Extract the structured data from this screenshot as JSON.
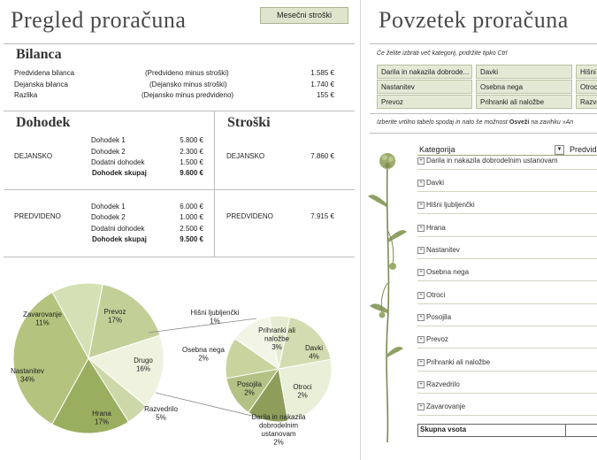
{
  "left": {
    "title": "Pregled proračuna",
    "monthly_button": "Mesečni stroški",
    "balance": {
      "heading": "Bilanca",
      "rows": [
        {
          "label": "Predvidena bilanca",
          "note": "(Predvideno minus stroški)",
          "value": "1.585 €"
        },
        {
          "label": "Dejanska bilanca",
          "note": "(Dejansko minus stroški)",
          "value": "1.740 €"
        },
        {
          "label": "Razlika",
          "note": "(Dejansko minus predvideno)",
          "value": "155 €"
        }
      ]
    },
    "income": {
      "heading": "Dohodek",
      "actual_label": "DEJANSKO",
      "actual": [
        {
          "label": "Dohodek 1",
          "value": "5.800 €"
        },
        {
          "label": "Dohodek 2",
          "value": "2.300 €"
        },
        {
          "label": "Dodatni dohodek",
          "value": "1.500 €"
        }
      ],
      "actual_total_label": "Dohodek skupaj",
      "actual_total": "9.600 €",
      "planned_label": "PREDVIDENO",
      "planned": [
        {
          "label": "Dohodek 1",
          "value": "6.000 €"
        },
        {
          "label": "Dohodek 2",
          "value": "1.000 €"
        },
        {
          "label": "Dodatni dohodek",
          "value": "2.500 €"
        }
      ],
      "planned_total_label": "Dohodek skupaj",
      "planned_total": "9.500 €"
    },
    "expenses": {
      "heading": "Stroški",
      "actual_label": "DEJANSKO",
      "actual_value": "7.860 €",
      "planned_label": "PREDVIDENO",
      "planned_value": "7.915 €"
    }
  },
  "chart_data": {
    "type": "pie",
    "main": [
      {
        "label": "Prevoz",
        "value": 17
      },
      {
        "label": "Drugo",
        "value": 16
      },
      {
        "label": "Razvedrilo",
        "value": 5
      },
      {
        "label": "Hrana",
        "value": 17
      },
      {
        "label": "Nastanitev",
        "value": 34
      },
      {
        "label": "Zavarovanje",
        "value": 11
      }
    ],
    "secondary": [
      {
        "label": "Hišni ljubljenčki",
        "value": 1
      },
      {
        "label": "Prihranki ali naložbe",
        "value": 3
      },
      {
        "label": "Davki",
        "value": 4
      },
      {
        "label": "Otroci",
        "value": 2
      },
      {
        "label": "Darila in nakazila dobrodelnim ustanovam",
        "value": 2
      },
      {
        "label": "Posojila",
        "value": 2
      },
      {
        "label": "Osebna nega",
        "value": 2
      }
    ],
    "main_colors": [
      "#c2cf97",
      "#eef2de",
      "#cdd8a8",
      "#9aae5f",
      "#b4c47e",
      "#d6e0b5"
    ],
    "secondary_colors": [
      "#e6ecd1",
      "#d3dcb0",
      "#eaefd8",
      "#8e9e5a",
      "#b3c184",
      "#c8d39e",
      "#f2f5e6"
    ],
    "labels": {
      "Prevoz": "Prevoz\n17%",
      "Drugo": "Drugo\n16%",
      "Razvedrilo": "Razvedrilo\n5%",
      "Hrana": "Hrana\n17%",
      "Nastanitev": "Nastanitev\n34%",
      "Zavarovanje": "Zavarovanje\n11%",
      "Hišni ljubljenčki": "Hišni ljubljenčki\n1%",
      "Prihranki ali naložbe": "Prihranki ali\nnaložbe\n3%",
      "Davki": "Davki\n4%",
      "Otroci": "Otroci\n2%",
      "Darila": "Darila in nakazila\ndobrodelnim\nustanovam\n2%",
      "Posojila": "Posojila\n2%",
      "Osebna nega": "Osebna nega\n2%"
    }
  },
  "right": {
    "title": "Povzetek proračuna",
    "hint": "Če želite izbrati več kategorij, pridržite tipko Ctrl",
    "slicer": [
      "Darila in nakazila dobrode...",
      "Davki",
      "Hišni",
      "Nastanitev",
      "Osebna nega",
      "Otroci",
      "Prevoz",
      "Prihranki ali naložbe",
      "Razve"
    ],
    "refresh_hint_1": "Izberite vrtilno tabelo spodaj in nato še možnost ",
    "refresh_word": "Osveži",
    "refresh_hint_2": " na zavihku »An",
    "table_header": "Kategorija",
    "table_header2": "Predvid",
    "rows": [
      "Darila in nakazila dobrodelnim ustanovam",
      "Davki",
      "Hišni ljubljenčki",
      "Hrana",
      "Nastanitev",
      "Osebna nega",
      "Otroci",
      "Posojila",
      "Prevoz",
      "Prihranki ali naložbe",
      "Razvedrilo",
      "Zavarovanje"
    ],
    "total": "Skupna vsota"
  }
}
